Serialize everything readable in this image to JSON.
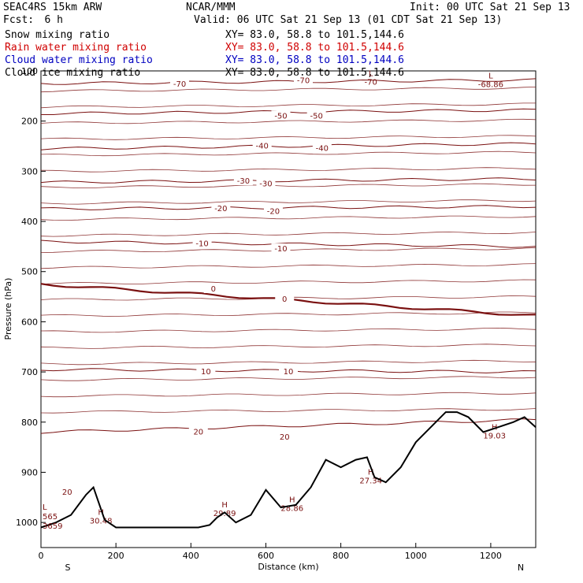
{
  "header": {
    "model": "SEAC4RS 15km ARW",
    "org": "NCAR/MMM",
    "init": "Init: 00 UTC Sat 21 Sep 13",
    "fcst_label": "Fcst:",
    "fcst_value": "6 h",
    "valid": "Valid: 06 UTC Sat 21 Sep 13 (01 CDT Sat 21 Sep 13)"
  },
  "fields": [
    {
      "name": "Snow mixing ratio",
      "xy": "XY=  83.0, 58.8 to 101.5,144.6",
      "color": "#000000"
    },
    {
      "name": "Rain water mixing ratio",
      "xy": "XY=  83.0, 58.8 to 101.5,144.6",
      "color": "#d00000"
    },
    {
      "name": "Cloud water mixing ratio",
      "xy": "XY=  83.0, 58.8 to 101.5,144.6",
      "color": "#0000c0"
    },
    {
      "name": "Cloud ice mixing ratio",
      "xy": "XY=  83.0, 58.8 to 101.5,144.6",
      "color": "#000000"
    }
  ],
  "chart_data": {
    "type": "line",
    "xlabel": "Distance (km)",
    "ylabel": "Pressure (hPa)",
    "xlim": [
      0,
      1320
    ],
    "ylim": [
      1050,
      100
    ],
    "x_ticks": [
      0,
      200,
      400,
      600,
      800,
      1000,
      1200
    ],
    "y_ticks": [
      100,
      200,
      300,
      400,
      500,
      600,
      700,
      800,
      900,
      1000
    ],
    "left_end_label": "S",
    "right_end_label": "N",
    "contour_color": "#7a1010",
    "temperature_contours_C": [
      {
        "label": "-70",
        "p_left": 125,
        "p_right": 118
      },
      {
        "label": "-50",
        "p_left": 185,
        "p_right": 178
      },
      {
        "label": "-40",
        "p_left": 255,
        "p_right": 245
      },
      {
        "label": "-30",
        "p_left": 322,
        "p_right": 315
      },
      {
        "label": "-20",
        "p_left": 375,
        "p_right": 370
      },
      {
        "label": "-10",
        "p_left": 440,
        "p_right": 450
      },
      {
        "label": "0",
        "p_left": 525,
        "p_right": 588
      },
      {
        "label": "10",
        "p_left": 695,
        "p_right": 700
      },
      {
        "label": "20",
        "p_left": 820,
        "p_right": 795
      }
    ],
    "contour_label_positions": [
      {
        "label": "-70",
        "x": 370,
        "p": 127
      },
      {
        "label": "-70",
        "x": 700,
        "p": 120
      },
      {
        "label": "-50",
        "x": 640,
        "p": 190
      },
      {
        "label": "-50",
        "x": 735,
        "p": 190
      },
      {
        "label": "-40",
        "x": 590,
        "p": 250
      },
      {
        "label": "-40",
        "x": 750,
        "p": 255
      },
      {
        "label": "-30",
        "x": 540,
        "p": 320
      },
      {
        "label": "-30",
        "x": 600,
        "p": 325
      },
      {
        "label": "-20",
        "x": 480,
        "p": 375
      },
      {
        "label": "-20",
        "x": 620,
        "p": 380
      },
      {
        "label": "-10",
        "x": 430,
        "p": 445
      },
      {
        "label": "-10",
        "x": 640,
        "p": 455
      },
      {
        "label": "0",
        "x": 460,
        "p": 535
      },
      {
        "label": "0",
        "x": 650,
        "p": 555
      },
      {
        "label": "10",
        "x": 440,
        "p": 700
      },
      {
        "label": "10",
        "x": 660,
        "p": 700
      },
      {
        "label": "20",
        "x": 420,
        "p": 820
      },
      {
        "label": "20",
        "x": 650,
        "p": 830
      },
      {
        "label": "20",
        "x": 70,
        "p": 940
      }
    ],
    "extrema_labels": [
      {
        "type": "H",
        "value": "30.48",
        "x": 160,
        "p": 985
      },
      {
        "type": "H",
        "value": "29.89",
        "x": 490,
        "p": 970
      },
      {
        "type": "H",
        "value": "28.86",
        "x": 670,
        "p": 960
      },
      {
        "type": "H",
        "value": "27.34",
        "x": 880,
        "p": 905
      },
      {
        "type": "H",
        "value": "19.03",
        "x": 1210,
        "p": 815
      },
      {
        "type": "L",
        "value": "-68.86",
        "x": 1200,
        "p": 115
      },
      {
        "type": "L",
        "value": "-70",
        "x": 880,
        "p": 110
      }
    ],
    "left_edge_labels": [
      "L",
      "565",
      "3659"
    ],
    "terrain_surface_pressure": {
      "x": [
        0,
        40,
        80,
        120,
        140,
        170,
        200,
        260,
        320,
        380,
        420,
        450,
        470,
        490,
        520,
        560,
        600,
        640,
        680,
        720,
        760,
        800,
        840,
        870,
        890,
        920,
        960,
        1000,
        1040,
        1080,
        1110,
        1140,
        1180,
        1220,
        1260,
        1290,
        1320
      ],
      "p": [
        1010,
        1000,
        985,
        945,
        930,
        995,
        1010,
        1010,
        1010,
        1010,
        1010,
        1005,
        990,
        980,
        1000,
        985,
        935,
        970,
        965,
        930,
        875,
        890,
        875,
        870,
        910,
        920,
        890,
        840,
        810,
        780,
        780,
        790,
        820,
        810,
        800,
        790,
        810
      ]
    }
  }
}
